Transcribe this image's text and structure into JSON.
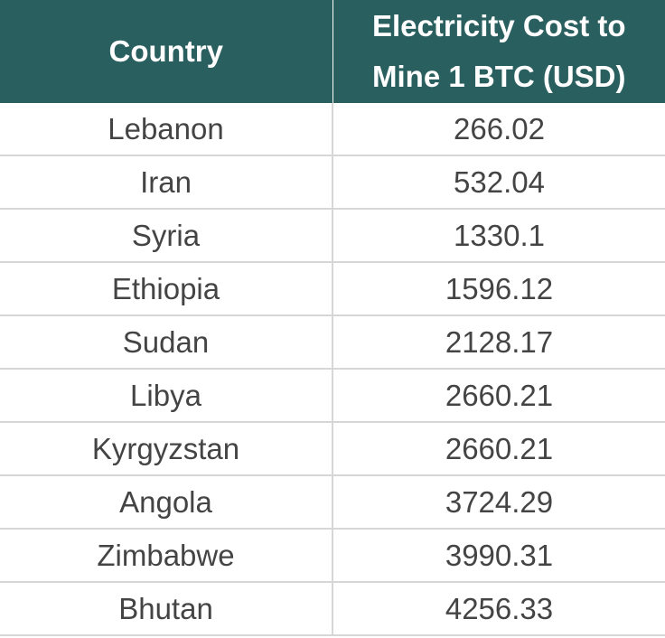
{
  "table": {
    "headers": [
      "Country",
      "Electricity Cost to Mine 1 BTC (USD)"
    ],
    "header_lines": [
      "Electricity Cost to",
      "Mine 1 BTC (USD)"
    ],
    "rows": [
      [
        "Lebanon",
        "266.02"
      ],
      [
        "Iran",
        "532.04"
      ],
      [
        "Syria",
        "1330.1"
      ],
      [
        "Ethiopia",
        "1596.12"
      ],
      [
        "Sudan",
        "2128.17"
      ],
      [
        "Libya",
        "2660.21"
      ],
      [
        "Kyrgyzstan",
        "2660.21"
      ],
      [
        "Angola",
        "3724.29"
      ],
      [
        "Zimbabwe",
        "3990.31"
      ],
      [
        "Bhutan",
        "4256.33"
      ]
    ]
  },
  "colors": {
    "header_bg": "#2a5f5f",
    "header_text": "#ffffff",
    "body_text": "#444444",
    "grid": "#d6d6d6"
  }
}
